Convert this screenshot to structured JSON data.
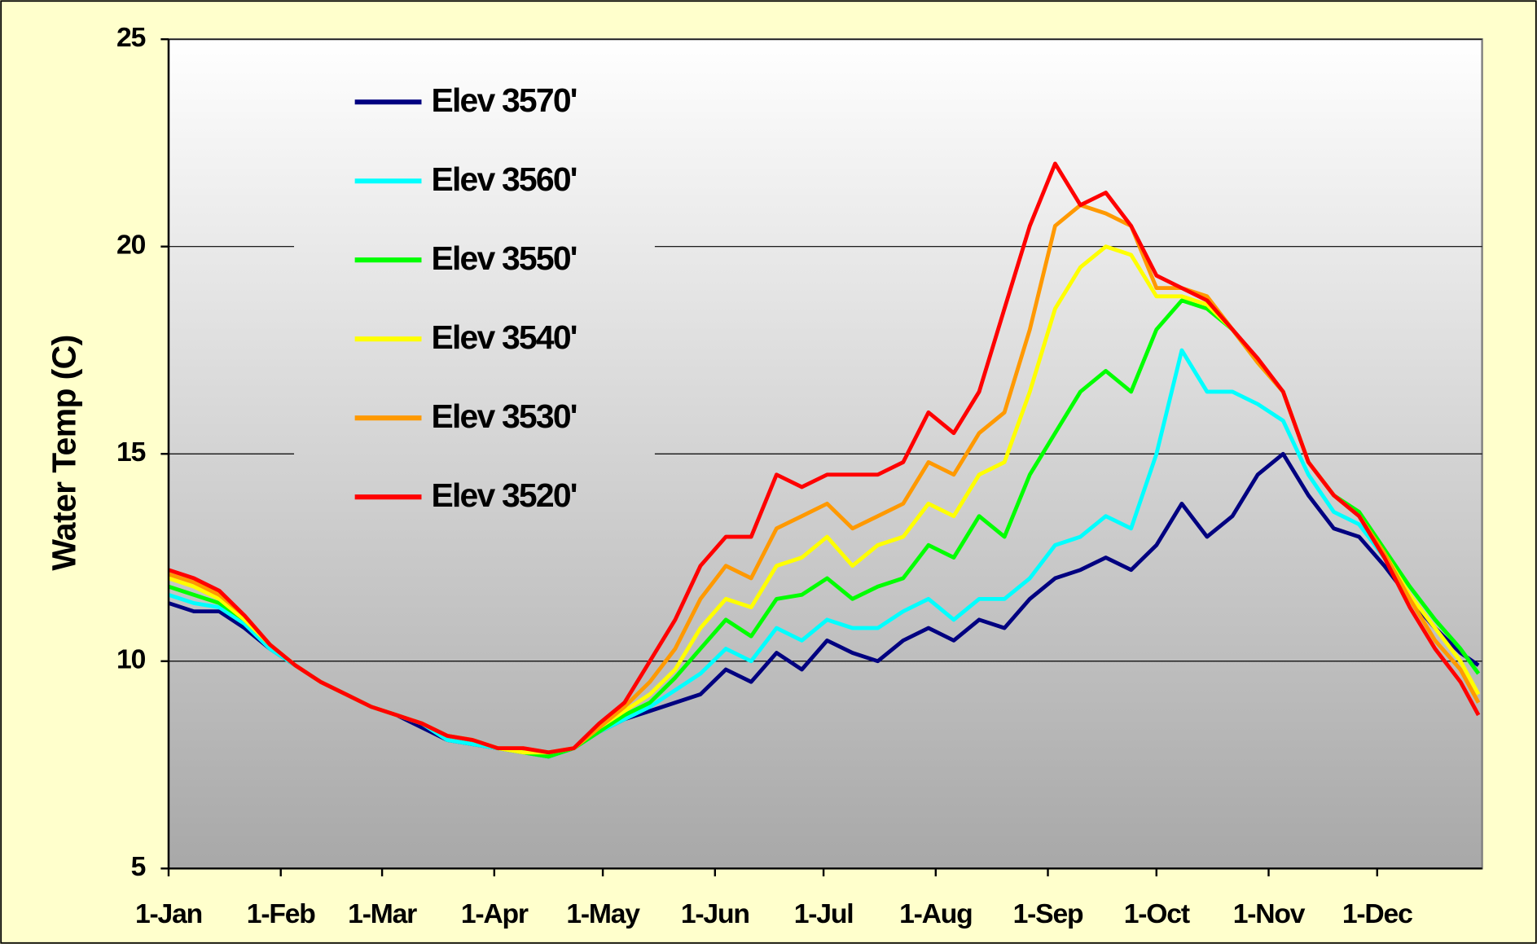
{
  "chart_data": {
    "type": "line",
    "y_label": "Water Temp  (C)",
    "x": [
      0,
      7,
      14,
      21,
      28,
      35,
      42,
      49,
      56,
      63,
      70,
      77,
      84,
      91,
      98,
      105,
      112,
      119,
      126,
      133,
      140,
      147,
      154,
      161,
      168,
      175,
      182,
      189,
      196,
      203,
      210,
      217,
      224,
      231,
      238,
      245,
      252,
      259,
      266,
      273,
      280,
      287,
      294,
      301,
      308,
      315,
      322,
      329,
      336,
      343,
      350,
      357,
      362
    ],
    "xlim": [
      0,
      363
    ],
    "xticks": [
      {
        "value": 0,
        "label": "1-Jan"
      },
      {
        "value": 31,
        "label": "1-Feb"
      },
      {
        "value": 59,
        "label": "1-Mar"
      },
      {
        "value": 90,
        "label": "1-Apr"
      },
      {
        "value": 120,
        "label": "1-May"
      },
      {
        "value": 151,
        "label": "1-Jun"
      },
      {
        "value": 181,
        "label": "1-Jul"
      },
      {
        "value": 212,
        "label": "1-Aug"
      },
      {
        "value": 243,
        "label": "1-Sep"
      },
      {
        "value": 273,
        "label": "1-Oct"
      },
      {
        "value": 304,
        "label": "1-Nov"
      },
      {
        "value": 334,
        "label": "1-Dec"
      }
    ],
    "ylim": [
      5,
      25
    ],
    "yticks": [
      5,
      10,
      15,
      20,
      25
    ],
    "grid": true,
    "legend": "upper left",
    "series": [
      {
        "name": "Elev 3570'",
        "color": "#000080",
        "values": [
          11.4,
          11.2,
          11.2,
          10.8,
          10.3,
          9.9,
          9.5,
          9.2,
          8.9,
          8.7,
          8.4,
          8.1,
          8.0,
          7.9,
          7.8,
          7.7,
          7.9,
          8.3,
          8.6,
          8.8,
          9.0,
          9.2,
          9.8,
          9.5,
          10.2,
          9.8,
          10.5,
          10.2,
          10.0,
          10.5,
          10.8,
          10.5,
          11.0,
          10.8,
          11.5,
          12.0,
          12.2,
          12.5,
          12.2,
          12.8,
          13.8,
          13.0,
          13.5,
          14.5,
          15.0,
          14.0,
          13.2,
          13.0,
          12.3,
          11.5,
          10.8,
          10.2,
          9.9
        ]
      },
      {
        "name": "Elev 3560'",
        "color": "#00ffff",
        "values": [
          11.6,
          11.4,
          11.3,
          10.9,
          10.3,
          9.9,
          9.5,
          9.2,
          8.9,
          8.7,
          8.5,
          8.1,
          8.0,
          7.9,
          7.8,
          7.7,
          7.9,
          8.3,
          8.6,
          8.9,
          9.3,
          9.7,
          10.3,
          10.0,
          10.8,
          10.5,
          11.0,
          10.8,
          10.8,
          11.2,
          11.5,
          11.0,
          11.5,
          11.5,
          12.0,
          12.8,
          13.0,
          13.5,
          13.2,
          15.0,
          17.5,
          16.5,
          16.5,
          16.2,
          15.8,
          14.5,
          13.6,
          13.3,
          12.5,
          11.8,
          11.0,
          10.3,
          9.7
        ]
      },
      {
        "name": "Elev 3550'",
        "color": "#00ff00",
        "values": [
          11.8,
          11.6,
          11.4,
          11.0,
          10.4,
          9.9,
          9.5,
          9.2,
          8.9,
          8.7,
          8.5,
          8.2,
          8.1,
          7.9,
          7.8,
          7.7,
          7.9,
          8.3,
          8.7,
          9.0,
          9.6,
          10.3,
          11.0,
          10.6,
          11.5,
          11.6,
          12.0,
          11.5,
          11.8,
          12.0,
          12.8,
          12.5,
          13.5,
          13.0,
          14.5,
          15.5,
          16.5,
          17.0,
          16.5,
          18.0,
          18.7,
          18.5,
          18.0,
          17.2,
          16.5,
          14.8,
          14.0,
          13.6,
          12.7,
          11.8,
          11.0,
          10.3,
          9.7
        ]
      },
      {
        "name": "Elev 3540'",
        "color": "#ffff00",
        "values": [
          12.0,
          11.8,
          11.5,
          11.0,
          10.4,
          9.9,
          9.5,
          9.2,
          8.9,
          8.7,
          8.5,
          8.2,
          8.1,
          7.9,
          7.8,
          7.8,
          7.9,
          8.4,
          8.8,
          9.2,
          9.8,
          10.8,
          11.5,
          11.3,
          12.3,
          12.5,
          13.0,
          12.3,
          12.8,
          13.0,
          13.8,
          13.5,
          14.5,
          14.8,
          16.5,
          18.5,
          19.5,
          20.0,
          19.8,
          18.8,
          18.8,
          18.6,
          18.0,
          17.2,
          16.5,
          14.8,
          14.0,
          13.5,
          12.6,
          11.6,
          10.8,
          10.0,
          9.2
        ]
      },
      {
        "name": "Elev 3530'",
        "color": "#ff9900",
        "values": [
          12.1,
          11.9,
          11.6,
          11.1,
          10.4,
          9.9,
          9.5,
          9.2,
          8.9,
          8.7,
          8.5,
          8.2,
          8.1,
          7.9,
          7.9,
          7.8,
          7.9,
          8.4,
          8.9,
          9.5,
          10.3,
          11.5,
          12.3,
          12.0,
          13.2,
          13.5,
          13.8,
          13.2,
          13.5,
          13.8,
          14.8,
          14.5,
          15.5,
          16.0,
          18.0,
          20.5,
          21.0,
          20.8,
          20.5,
          19.0,
          19.0,
          18.8,
          18.0,
          17.2,
          16.5,
          14.8,
          14.0,
          13.5,
          12.6,
          11.5,
          10.5,
          9.8,
          9.0
        ]
      },
      {
        "name": "Elev 3520'",
        "color": "#ff0000",
        "values": [
          12.2,
          12.0,
          11.7,
          11.1,
          10.4,
          9.9,
          9.5,
          9.2,
          8.9,
          8.7,
          8.5,
          8.2,
          8.1,
          7.9,
          7.9,
          7.8,
          7.9,
          8.5,
          9.0,
          10.0,
          11.0,
          12.3,
          13.0,
          13.0,
          14.5,
          14.2,
          14.5,
          14.5,
          14.5,
          14.8,
          16.0,
          15.5,
          16.5,
          18.5,
          20.5,
          22.0,
          21.0,
          21.3,
          20.5,
          19.3,
          19.0,
          18.7,
          18.0,
          17.3,
          16.5,
          14.8,
          14.0,
          13.5,
          12.5,
          11.3,
          10.3,
          9.5,
          8.7
        ]
      }
    ]
  }
}
